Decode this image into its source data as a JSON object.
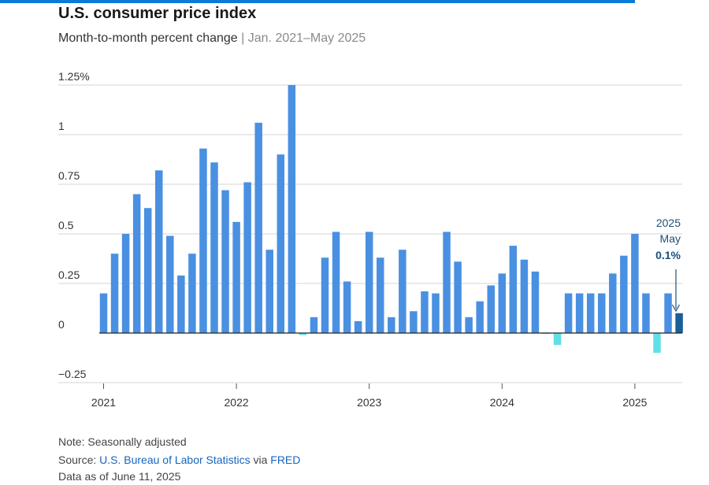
{
  "header": {
    "title": "U.S. consumer price index",
    "subtitle_main": "Month-to-month percent change",
    "subtitle_separator": "|",
    "subtitle_range": "Jan. 2021–May 2025"
  },
  "annotation": {
    "year": "2025",
    "month": "May",
    "value_text": "0.1%"
  },
  "footer": {
    "note": "Note: Seasonally adjusted",
    "source_prefix": "Source: ",
    "source_name": "U.S. Bureau of Labor Statistics",
    "source_via": " via ",
    "source_platform": "FRED",
    "data_as_of": "Data as of June 11, 2025"
  },
  "colors": {
    "positive": "#4a90e2",
    "negative": "#5fe0e8",
    "highlight": "#1a5f96",
    "grid": "#d4d4d4",
    "zero_line": "#222222",
    "accent_bar": "#0a7bd6"
  },
  "chart_data": {
    "type": "bar",
    "x_start": "2021-01",
    "ylim": [
      -0.25,
      1.25
    ],
    "y_ticks": [
      {
        "value": 1.25,
        "label": "1.25%"
      },
      {
        "value": 1,
        "label": "1"
      },
      {
        "value": 0.75,
        "label": "0.75"
      },
      {
        "value": 0.5,
        "label": "0.5"
      },
      {
        "value": 0.25,
        "label": "0.25"
      },
      {
        "value": 0,
        "label": "0"
      },
      {
        "value": -0.25,
        "label": "−0.25"
      }
    ],
    "x_ticks": [
      {
        "month_index": 0,
        "label": "2021"
      },
      {
        "month_index": 12,
        "label": "2022"
      },
      {
        "month_index": 24,
        "label": "2023"
      },
      {
        "month_index": 36,
        "label": "2024"
      },
      {
        "month_index": 48,
        "label": "2025"
      }
    ],
    "grid": true,
    "highlight_index": 52,
    "values": [
      0.2,
      0.4,
      0.5,
      0.7,
      0.63,
      0.82,
      0.49,
      0.29,
      0.4,
      0.93,
      0.86,
      0.72,
      0.56,
      0.76,
      1.06,
      0.42,
      0.9,
      1.25,
      -0.01,
      0.08,
      0.38,
      0.51,
      0.26,
      0.06,
      0.51,
      0.38,
      0.08,
      0.42,
      0.11,
      0.21,
      0.2,
      0.51,
      0.36,
      0.08,
      0.16,
      0.24,
      0.3,
      0.44,
      0.37,
      0.31,
      0.0,
      -0.06,
      0.2,
      0.2,
      0.2,
      0.2,
      0.3,
      0.39,
      0.5,
      0.2,
      -0.1,
      0.2,
      0.1
    ]
  }
}
